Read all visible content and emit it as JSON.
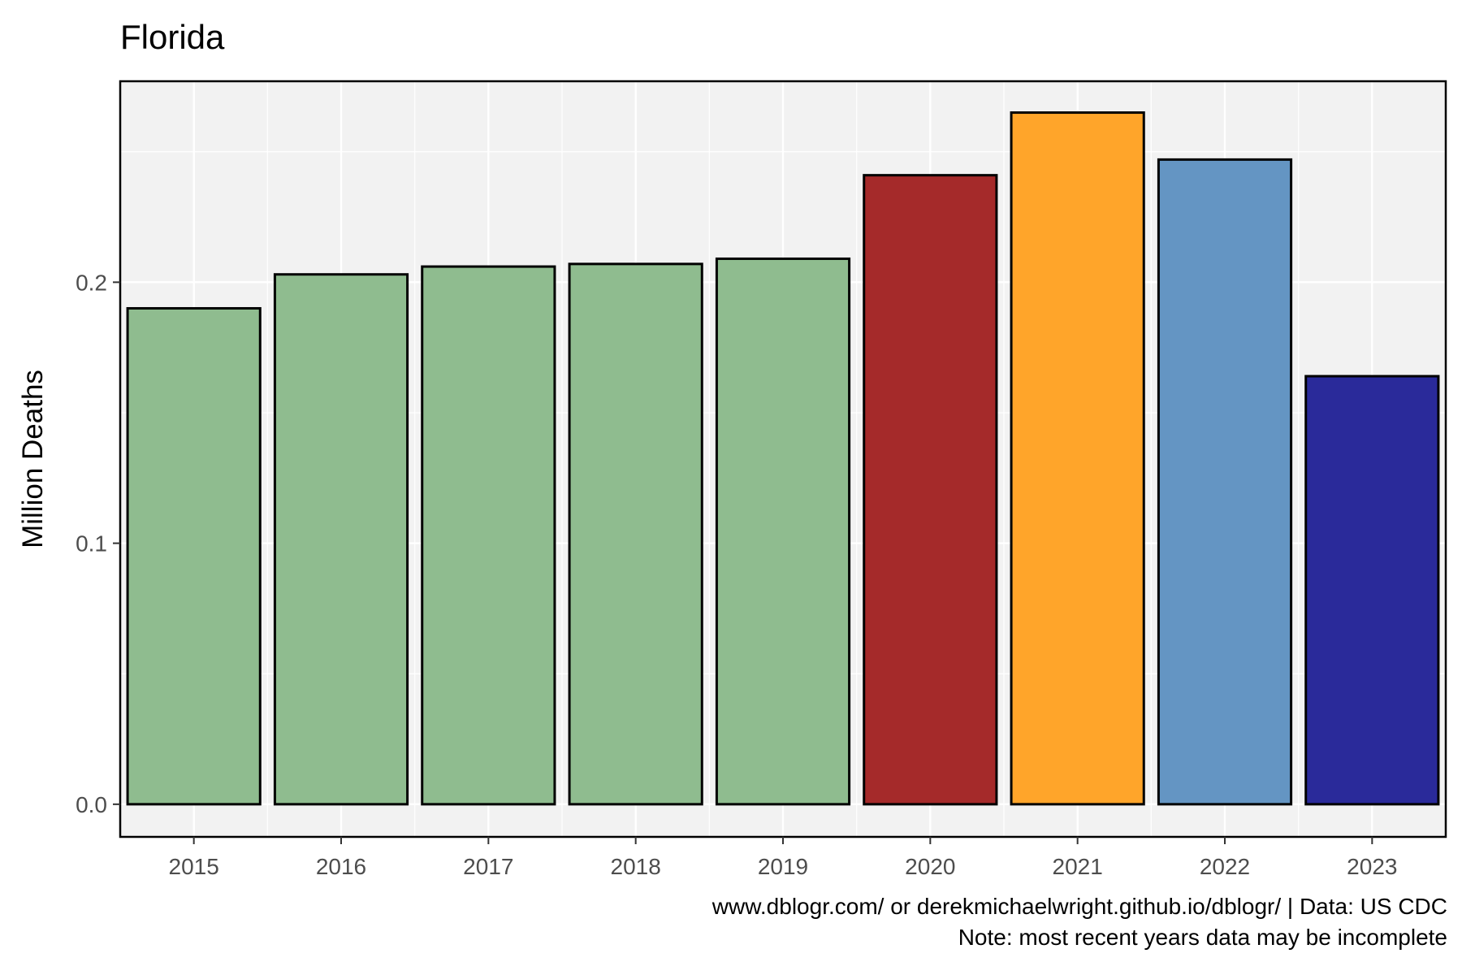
{
  "chart_data": {
    "type": "bar",
    "title": "Florida",
    "xlabel": "",
    "ylabel": "Million Deaths",
    "categories": [
      "2015",
      "2016",
      "2017",
      "2018",
      "2019",
      "2020",
      "2021",
      "2022",
      "2023"
    ],
    "values": [
      0.19,
      0.203,
      0.206,
      0.207,
      0.209,
      0.241,
      0.265,
      0.247,
      0.164
    ],
    "bar_colors": [
      "#8fbc8f",
      "#8fbc8f",
      "#8fbc8f",
      "#8fbc8f",
      "#8fbc8f",
      "#a52a2a",
      "#ffa52a",
      "#6495c3",
      "#2a2a9a"
    ],
    "bar_outline_color": "#000000",
    "ylim": [
      -0.0125,
      0.277
    ],
    "yticks": [
      0.0,
      0.1,
      0.2
    ],
    "ytick_labels": [
      "0.0",
      "0.1",
      "0.2"
    ],
    "grid": true,
    "panel_background": "#f2f2f2",
    "legend": "none",
    "caption_lines": [
      "www.dblogr.com/ or derekmichaelwright.github.io/dblogr/ | Data: US CDC",
      "Note: most recent years data may be incomplete"
    ]
  }
}
